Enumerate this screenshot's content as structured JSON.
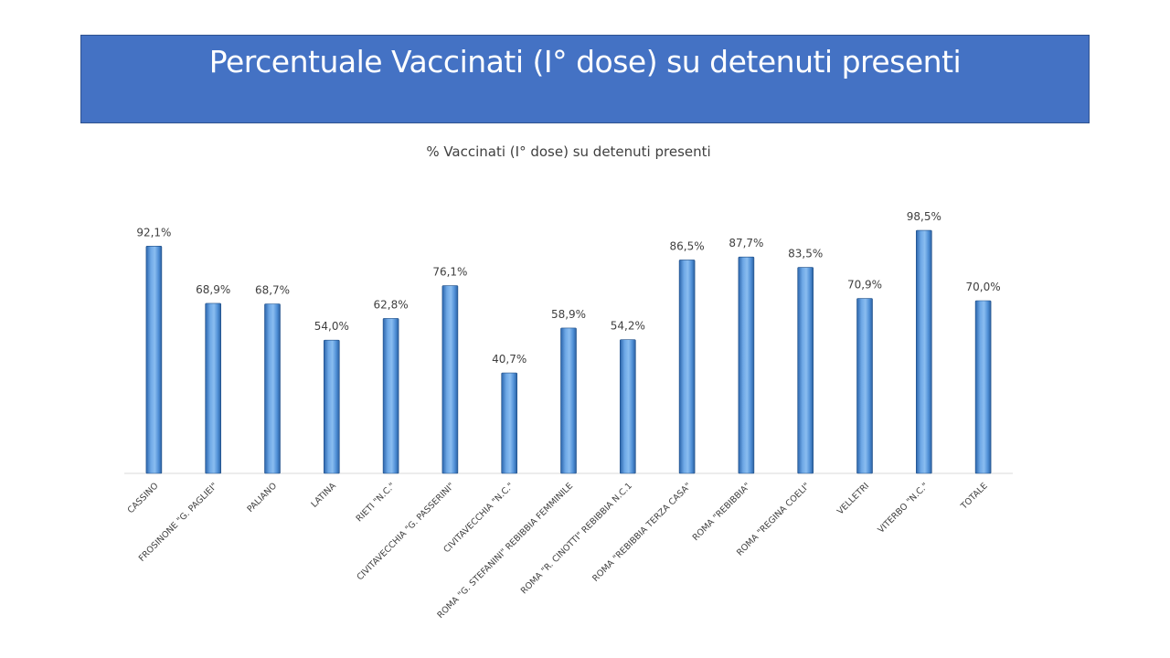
{
  "slide": {
    "title": "Percentuale  Vaccinati (I° dose) su detenuti   presenti"
  },
  "colors": {
    "banner": "#4472c4",
    "bar_light": "#7fb2ea",
    "bar_dark": "#2e6cb5"
  },
  "chart_data": {
    "type": "bar",
    "title": "% Vaccinati (I° dose) su detenuti  presenti",
    "categories": [
      "CASSINO",
      "FROSINONE \"G. PAGLIEI\"",
      "PALIANO",
      "LATINA",
      "RIETI \"N.C.\"",
      "CIVITAVECCHIA \"G. PASSERINI\"",
      "CIVITAVECCHIA \"N.C.\"",
      "ROMA \"G. STEFANINI\" REBIBBIA FEMMINILE",
      "ROMA \"R. CINOTTI\" REBIBBIA N.C.1",
      "ROMA \"REBIBBIA TERZA CASA\"",
      "ROMA \"REBIBBIA\"",
      "ROMA \"REGINA COELI\"",
      "VELLETRI",
      "VITERBO \"N.C.\"",
      "TOTALE"
    ],
    "values": [
      92.1,
      68.9,
      68.7,
      54.0,
      62.8,
      76.1,
      40.7,
      58.9,
      54.2,
      86.5,
      87.7,
      83.5,
      70.9,
      98.5,
      70.0
    ],
    "labels": [
      "92,1%",
      "68,9%",
      "68,7%",
      "54,0%",
      "62,8%",
      "76,1%",
      "40,7%",
      "58,9%",
      "54,2%",
      "86,5%",
      "87,7%",
      "83,5%",
      "70,9%",
      "98,5%",
      "70,0%"
    ],
    "ylim": [
      0,
      100
    ],
    "grid": false,
    "legend": "none"
  }
}
